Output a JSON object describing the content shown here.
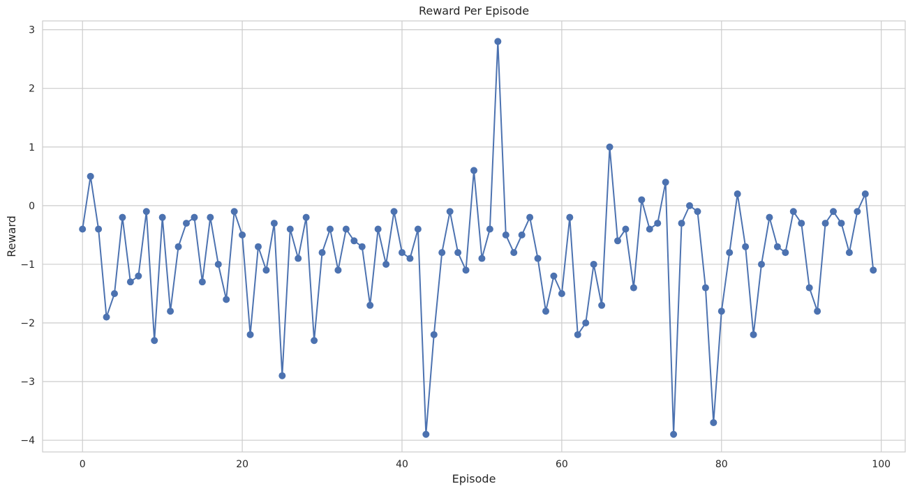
{
  "chart_data": {
    "type": "line",
    "title": "Reward Per Episode",
    "xlabel": "Episode",
    "ylabel": "Reward",
    "xlim": [
      -5,
      103
    ],
    "ylim": [
      -4.2,
      3.15
    ],
    "xticks": [
      0,
      20,
      40,
      60,
      80,
      100
    ],
    "yticks": [
      -4,
      -3,
      -2,
      -1,
      0,
      1,
      2,
      3
    ],
    "grid": true,
    "line_color": "#4c72b0",
    "markers": true,
    "x": [
      0,
      1,
      2,
      3,
      4,
      5,
      6,
      7,
      8,
      9,
      10,
      11,
      12,
      13,
      14,
      15,
      16,
      17,
      18,
      19,
      20,
      21,
      22,
      23,
      24,
      25,
      26,
      27,
      28,
      29,
      30,
      31,
      32,
      33,
      34,
      35,
      36,
      37,
      38,
      39,
      40,
      41,
      42,
      43,
      44,
      45,
      46,
      47,
      48,
      49,
      50,
      51,
      52,
      53,
      54,
      55,
      56,
      57,
      58,
      59,
      60,
      61,
      62,
      63,
      64,
      65,
      66,
      67,
      68,
      69,
      70,
      71,
      72,
      73,
      74,
      75,
      76,
      77,
      78,
      79,
      80,
      81,
      82,
      83,
      84,
      85,
      86,
      87,
      88,
      89,
      90,
      91,
      92,
      93,
      94,
      95,
      96,
      97,
      98,
      99
    ],
    "y": [
      -0.4,
      0.5,
      -0.4,
      -1.9,
      -1.5,
      -0.2,
      -1.3,
      -1.2,
      -0.1,
      -2.3,
      -0.2,
      -1.8,
      -0.7,
      -0.3,
      -0.2,
      -1.3,
      -0.2,
      -1.0,
      -1.6,
      -0.1,
      -0.5,
      -2.2,
      -0.7,
      -1.1,
      -0.3,
      -2.9,
      -0.4,
      -0.9,
      -0.2,
      -2.3,
      -0.8,
      -0.4,
      -1.1,
      -0.4,
      -0.6,
      -0.7,
      -1.7,
      -0.4,
      -1.0,
      -0.1,
      -0.8,
      -0.9,
      -0.4,
      -3.9,
      -2.2,
      -0.8,
      -0.1,
      -0.8,
      -1.1,
      0.6,
      -0.9,
      -0.4,
      2.8,
      -0.5,
      -0.8,
      -0.5,
      -0.2,
      -0.9,
      -1.8,
      -1.2,
      -1.5,
      -0.2,
      -2.2,
      -2.0,
      -1.0,
      -1.7,
      1.0,
      -0.6,
      -0.4,
      -1.4,
      0.1,
      -0.4,
      -0.3,
      0.4,
      -3.9,
      -0.3,
      0.0,
      -0.1,
      -1.4,
      -3.7,
      -1.8,
      -0.8,
      0.2,
      -0.7,
      -2.2,
      -1.0,
      -0.2,
      -0.7,
      -0.8,
      -0.1,
      -0.3,
      -1.4,
      -1.8,
      -0.3,
      -0.1,
      -0.3,
      -0.8,
      -0.1,
      0.2,
      -1.1
    ]
  }
}
